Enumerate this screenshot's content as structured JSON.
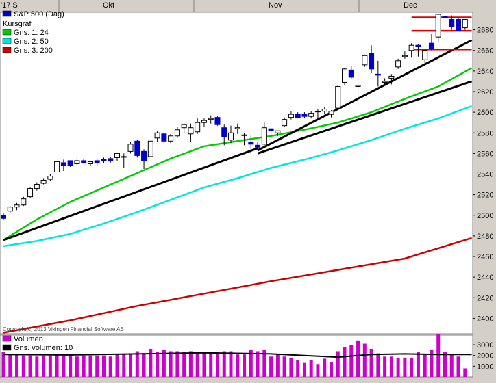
{
  "chart_data": {
    "type": "candlestick",
    "title": "S&P 500 (Dag)",
    "subtitle": "Kursgraf",
    "copyright": "Copyright(c) 2013 Vikingen Financial Software AB",
    "x_period_labels": [
      "'17 S",
      "Okt",
      "Nov",
      "Dec"
    ],
    "y_ticks": [
      2400,
      2420,
      2440,
      2460,
      2480,
      2500,
      2520,
      2540,
      2560,
      2580,
      2600,
      2620,
      2640,
      2660,
      2680
    ],
    "ylim": [
      2385,
      2697
    ],
    "legend": [
      {
        "label": "S&P 500 (Dag)",
        "color": "#0000cc"
      },
      {
        "label": "Kursgraf",
        "color": ""
      },
      {
        "label": "Gns. 1: 24",
        "color": "#00cc00"
      },
      {
        "label": "Gns. 2: 50",
        "color": "#00e5e5"
      },
      {
        "label": "Gns. 3: 200",
        "color": "#cc0000"
      }
    ],
    "candles": [
      [
        2500,
        2502,
        2496,
        2497
      ],
      [
        2504,
        2509,
        2502,
        2508
      ],
      [
        2508,
        2512,
        2505,
        2510
      ],
      [
        2510,
        2518,
        2509,
        2516
      ],
      [
        2518,
        2527,
        2517,
        2526
      ],
      [
        2526,
        2532,
        2524,
        2530
      ],
      [
        2531,
        2536,
        2530,
        2534
      ],
      [
        2535,
        2540,
        2533,
        2538
      ],
      [
        2542,
        2552,
        2542,
        2552
      ],
      [
        2551,
        2554,
        2543,
        2548
      ],
      [
        2553,
        2553,
        2547,
        2548
      ],
      [
        2550,
        2556,
        2548,
        2553
      ],
      [
        2553,
        2555,
        2550,
        2551
      ],
      [
        2550,
        2553,
        2548,
        2552
      ],
      [
        2553,
        2555,
        2548,
        2551
      ],
      [
        2554,
        2556,
        2551,
        2553
      ],
      [
        2555,
        2557,
        2551,
        2553
      ],
      [
        2556,
        2561,
        2553,
        2560
      ],
      [
        2557,
        2560,
        2546,
        2557
      ],
      [
        2562,
        2571,
        2560,
        2569
      ],
      [
        2572,
        2573,
        2556,
        2558
      ],
      [
        2562,
        2564,
        2545,
        2553
      ],
      [
        2557,
        2572,
        2557,
        2572
      ],
      [
        2575,
        2582,
        2571,
        2580
      ],
      [
        2579,
        2579,
        2570,
        2572
      ],
      [
        2572,
        2579,
        2570,
        2577
      ],
      [
        2577,
        2586,
        2575,
        2583
      ],
      [
        2585,
        2589,
        2580,
        2588
      ],
      [
        2579,
        2589,
        2571,
        2585
      ],
      [
        2581,
        2594,
        2579,
        2590
      ],
      [
        2590,
        2594,
        2586,
        2592
      ],
      [
        2593,
        2597,
        2589,
        2594
      ],
      [
        2595,
        2596,
        2587,
        2588
      ],
      [
        2585,
        2588,
        2568,
        2576
      ],
      [
        2573,
        2587,
        2570,
        2580
      ],
      [
        2584,
        2589,
        2579,
        2585
      ],
      [
        2578,
        2580,
        2568,
        2578
      ],
      [
        2571,
        2578,
        2560,
        2569
      ],
      [
        2568,
        2571,
        2563,
        2566
      ],
      [
        2569,
        2590,
        2568,
        2585
      ],
      [
        2584,
        2584,
        2575,
        2582
      ],
      [
        2580,
        2582,
        2577,
        2582
      ],
      [
        2587,
        2595,
        2586,
        2593
      ],
      [
        2595,
        2601,
        2593,
        2598
      ],
      [
        2598,
        2600,
        2594,
        2595
      ],
      [
        2598,
        2600,
        2594,
        2596
      ],
      [
        2596,
        2601,
        2594,
        2599
      ],
      [
        2601,
        2603,
        2594,
        2601
      ],
      [
        2601,
        2605,
        2598,
        2603
      ],
      [
        2598,
        2602,
        2595,
        2601
      ],
      [
        2604,
        2626,
        2604,
        2625
      ],
      [
        2629,
        2643,
        2626,
        2642
      ],
      [
        2641,
        2645,
        2632,
        2634
      ],
      [
        2625,
        2640,
        2606,
        2626
      ],
      [
        2646,
        2656,
        2644,
        2655
      ],
      [
        2657,
        2665,
        2638,
        2642
      ],
      [
        2637,
        2650,
        2625,
        2636
      ],
      [
        2629,
        2633,
        2626,
        2630
      ],
      [
        2633,
        2637,
        2627,
        2635
      ],
      [
        2644,
        2652,
        2642,
        2650
      ],
      [
        2654,
        2659,
        2652,
        2655
      ],
      [
        2660,
        2667,
        2653,
        2665
      ],
      [
        2665,
        2666,
        2654,
        2664
      ],
      [
        2651,
        2660,
        2648,
        2660
      ],
      [
        2667,
        2676,
        2660,
        2662
      ],
      [
        2673,
        2695,
        2668,
        2695
      ],
      [
        2693,
        2697,
        2686,
        2692
      ],
      [
        2690,
        2694,
        2680,
        2683
      ],
      [
        2690,
        2692,
        2679,
        2679
      ],
      [
        2682,
        2690,
        2680,
        2690
      ]
    ],
    "trendlines": [
      {
        "from": [
          0,
          2476
        ],
        "to": [
          38,
          2565
        ],
        "color": "#000000"
      },
      {
        "from": [
          38,
          2563
        ],
        "to": [
          70,
          2670
        ],
        "color": "#000000"
      },
      {
        "from": [
          38,
          2560
        ],
        "to": [
          70,
          2630
        ],
        "color": "#000000"
      },
      {
        "from": [
          61,
          2692
        ],
        "to": [
          70,
          2692
        ],
        "color": "#dd0000"
      },
      {
        "from": [
          61,
          2679
        ],
        "to": [
          70,
          2679
        ],
        "color": "#dd0000"
      },
      {
        "from": [
          61,
          2661
        ],
        "to": [
          70,
          2661
        ],
        "color": "#dd0000"
      }
    ],
    "ma24": [
      [
        0,
        2476
      ],
      [
        5,
        2496
      ],
      [
        10,
        2513
      ],
      [
        15,
        2527
      ],
      [
        20,
        2541
      ],
      [
        25,
        2555
      ],
      [
        30,
        2567
      ],
      [
        35,
        2572
      ],
      [
        40,
        2577
      ],
      [
        45,
        2583
      ],
      [
        50,
        2590
      ],
      [
        55,
        2600
      ],
      [
        60,
        2613
      ],
      [
        65,
        2625
      ],
      [
        70,
        2643
      ]
    ],
    "ma50": [
      [
        0,
        2470
      ],
      [
        5,
        2475
      ],
      [
        10,
        2482
      ],
      [
        15,
        2492
      ],
      [
        20,
        2503
      ],
      [
        25,
        2515
      ],
      [
        30,
        2527
      ],
      [
        35,
        2536
      ],
      [
        40,
        2546
      ],
      [
        45,
        2554
      ],
      [
        50,
        2563
      ],
      [
        55,
        2573
      ],
      [
        60,
        2584
      ],
      [
        65,
        2594
      ],
      [
        70,
        2606
      ]
    ],
    "ma200": [
      [
        0,
        2386
      ],
      [
        10,
        2398
      ],
      [
        20,
        2412
      ],
      [
        30,
        2424
      ],
      [
        40,
        2436
      ],
      [
        50,
        2447
      ],
      [
        60,
        2458
      ],
      [
        70,
        2478
      ]
    ],
    "volume_legend": [
      {
        "label": "Volumen",
        "color": "#cc00cc"
      },
      {
        "label": "Gns. volumen: 10",
        "color": "#000000"
      }
    ],
    "volume_ticks": [
      "3000",
      "2000",
      "1000"
    ],
    "volume_ylim": [
      0,
      3900
    ],
    "volume": [
      2300,
      2100,
      2100,
      2000,
      2000,
      1900,
      2000,
      2000,
      2100,
      2000,
      2100,
      1900,
      2000,
      2000,
      2000,
      2000,
      1900,
      2100,
      2100,
      2100,
      2400,
      2200,
      2600,
      2300,
      2500,
      2400,
      2400,
      2300,
      2400,
      2300,
      2200,
      2300,
      2300,
      2400,
      2400,
      2100,
      2100,
      2500,
      2400,
      2500,
      1900,
      2100,
      1900,
      1800,
      1600,
      1300,
      1600,
      1200,
      1700,
      1400,
      2400,
      2800,
      3000,
      3400,
      3100,
      2600,
      2200,
      1900,
      1900,
      1800,
      1800,
      1800,
      2300,
      2100,
      2500,
      4000,
      2300,
      2100,
      1900,
      800
    ],
    "volume_avg": [
      [
        0,
        2100
      ],
      [
        10,
        2050
      ],
      [
        20,
        2150
      ],
      [
        30,
        2250
      ],
      [
        40,
        2150
      ],
      [
        50,
        1850
      ],
      [
        55,
        2100
      ],
      [
        60,
        2150
      ],
      [
        65,
        2100
      ],
      [
        70,
        2100
      ]
    ]
  }
}
